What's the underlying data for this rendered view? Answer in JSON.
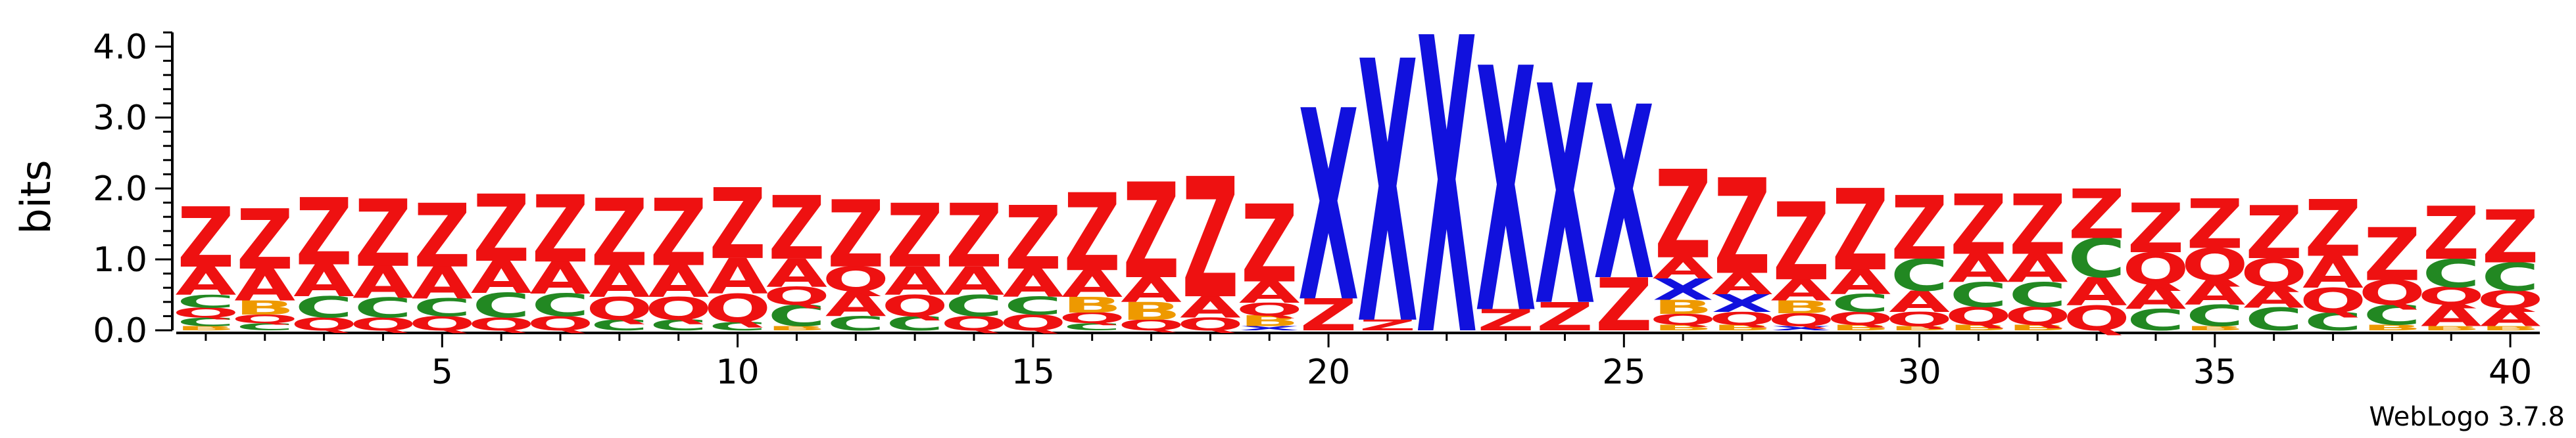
{
  "chart_data": {
    "type": "sequence-logo",
    "ylabel": "bits",
    "ylim": [
      0,
      4.2
    ],
    "yticks": [
      0.0,
      1.0,
      2.0,
      3.0,
      4.0
    ],
    "ytick_labels": [
      "0.0",
      "1.0",
      "2.0",
      "3.0",
      "4.0"
    ],
    "xlim": [
      0.5,
      40.5
    ],
    "xticks": [
      5,
      10,
      15,
      20,
      25,
      30,
      35,
      40
    ],
    "xtick_labels": [
      "5",
      "10",
      "15",
      "20",
      "25",
      "30",
      "35",
      "40"
    ],
    "colors": {
      "Z": "#ee1111",
      "A": "#ee1111",
      "Q": "#ee1111",
      "X": "#1111dd",
      "C": "#228822",
      "B": "#ee9900"
    },
    "positions": [
      {
        "pos": 1,
        "stack": [
          [
            "B",
            0.06
          ],
          [
            "C",
            0.12
          ],
          [
            "Q",
            0.14
          ],
          [
            "C",
            0.18
          ],
          [
            "A",
            0.4
          ],
          [
            "Z",
            0.85
          ]
        ]
      },
      {
        "pos": 2,
        "stack": [
          [
            "C",
            0.1
          ],
          [
            "Q",
            0.12
          ],
          [
            "B",
            0.2
          ],
          [
            "A",
            0.45
          ],
          [
            "Z",
            0.85
          ]
        ]
      },
      {
        "pos": 3,
        "stack": [
          [
            "Q",
            0.18
          ],
          [
            "C",
            0.3
          ],
          [
            "A",
            0.45
          ],
          [
            "Z",
            0.95
          ]
        ]
      },
      {
        "pos": 4,
        "stack": [
          [
            "Q",
            0.18
          ],
          [
            "C",
            0.28
          ],
          [
            "A",
            0.45
          ],
          [
            "Z",
            0.95
          ]
        ]
      },
      {
        "pos": 5,
        "stack": [
          [
            "Q",
            0.2
          ],
          [
            "C",
            0.25
          ],
          [
            "A",
            0.45
          ],
          [
            "Z",
            0.9
          ]
        ]
      },
      {
        "pos": 6,
        "stack": [
          [
            "Q",
            0.18
          ],
          [
            "C",
            0.35
          ],
          [
            "A",
            0.45
          ],
          [
            "Z",
            0.95
          ]
        ]
      },
      {
        "pos": 7,
        "stack": [
          [
            "Q",
            0.2
          ],
          [
            "C",
            0.32
          ],
          [
            "A",
            0.45
          ],
          [
            "Z",
            0.95
          ]
        ]
      },
      {
        "pos": 8,
        "stack": [
          [
            "C",
            0.15
          ],
          [
            "Q",
            0.32
          ],
          [
            "A",
            0.45
          ],
          [
            "Z",
            0.95
          ]
        ]
      },
      {
        "pos": 9,
        "stack": [
          [
            "C",
            0.15
          ],
          [
            "Q",
            0.32
          ],
          [
            "A",
            0.45
          ],
          [
            "Z",
            0.95
          ]
        ]
      },
      {
        "pos": 10,
        "stack": [
          [
            "C",
            0.12
          ],
          [
            "Q",
            0.4
          ],
          [
            "A",
            0.5
          ],
          [
            "Z",
            1.0
          ]
        ]
      },
      {
        "pos": 11,
        "stack": [
          [
            "B",
            0.06
          ],
          [
            "C",
            0.3
          ],
          [
            "Q",
            0.25
          ],
          [
            "A",
            0.4
          ],
          [
            "Z",
            0.9
          ]
        ]
      },
      {
        "pos": 12,
        "stack": [
          [
            "C",
            0.2
          ],
          [
            "A",
            0.35
          ],
          [
            "Q",
            0.35
          ],
          [
            "Z",
            0.95
          ]
        ]
      },
      {
        "pos": 13,
        "stack": [
          [
            "C",
            0.2
          ],
          [
            "Q",
            0.3
          ],
          [
            "A",
            0.4
          ],
          [
            "Z",
            0.9
          ]
        ]
      },
      {
        "pos": 14,
        "stack": [
          [
            "Q",
            0.2
          ],
          [
            "C",
            0.3
          ],
          [
            "A",
            0.4
          ],
          [
            "Z",
            0.9
          ]
        ]
      },
      {
        "pos": 15,
        "stack": [
          [
            "Q",
            0.22
          ],
          [
            "C",
            0.25
          ],
          [
            "A",
            0.4
          ],
          [
            "Z",
            0.9
          ]
        ]
      },
      {
        "pos": 16,
        "stack": [
          [
            "C",
            0.1
          ],
          [
            "Q",
            0.15
          ],
          [
            "B",
            0.22
          ],
          [
            "A",
            0.38
          ],
          [
            "Z",
            1.1
          ]
        ]
      },
      {
        "pos": 17,
        "stack": [
          [
            "Q",
            0.15
          ],
          [
            "B",
            0.25
          ],
          [
            "A",
            0.35
          ],
          [
            "Z",
            1.35
          ]
        ]
      },
      {
        "pos": 18,
        "stack": [
          [
            "Q",
            0.18
          ],
          [
            "A",
            0.3
          ],
          [
            "Z",
            1.7
          ]
        ]
      },
      {
        "pos": 19,
        "stack": [
          [
            "X",
            0.06
          ],
          [
            "B",
            0.15
          ],
          [
            "Q",
            0.18
          ],
          [
            "A",
            0.3
          ],
          [
            "Z",
            1.1
          ]
        ]
      },
      {
        "pos": 20,
        "stack": [
          [
            "Z",
            0.45
          ],
          [
            "X",
            2.7
          ]
        ]
      },
      {
        "pos": 21,
        "stack": [
          [
            "Z",
            0.15
          ],
          [
            "X",
            3.7
          ]
        ]
      },
      {
        "pos": 22,
        "stack": [
          [
            "X",
            4.18
          ]
        ]
      },
      {
        "pos": 23,
        "stack": [
          [
            "Z",
            0.3
          ],
          [
            "X",
            3.45
          ]
        ]
      },
      {
        "pos": 24,
        "stack": [
          [
            "Z",
            0.4
          ],
          [
            "X",
            3.1
          ]
        ]
      },
      {
        "pos": 25,
        "stack": [
          [
            "Z",
            0.75
          ],
          [
            "X",
            2.45
          ]
        ]
      },
      {
        "pos": 26,
        "stack": [
          [
            "B",
            0.08
          ],
          [
            "Q",
            0.15
          ],
          [
            "B",
            0.2
          ],
          [
            "X",
            0.3
          ],
          [
            "A",
            0.3
          ],
          [
            "Z",
            1.25
          ]
        ]
      },
      {
        "pos": 27,
        "stack": [
          [
            "B",
            0.08
          ],
          [
            "Q",
            0.18
          ],
          [
            "X",
            0.25
          ],
          [
            "A",
            0.3
          ],
          [
            "Z",
            1.35
          ]
        ]
      },
      {
        "pos": 28,
        "stack": [
          [
            "X",
            0.06
          ],
          [
            "Q",
            0.18
          ],
          [
            "B",
            0.18
          ],
          [
            "A",
            0.3
          ],
          [
            "Z",
            1.1
          ]
        ]
      },
      {
        "pos": 29,
        "stack": [
          [
            "B",
            0.08
          ],
          [
            "Q",
            0.18
          ],
          [
            "C",
            0.25
          ],
          [
            "A",
            0.35
          ],
          [
            "Z",
            1.15
          ]
        ]
      },
      {
        "pos": 30,
        "stack": [
          [
            "B",
            0.06
          ],
          [
            "Q",
            0.2
          ],
          [
            "A",
            0.3
          ],
          [
            "C",
            0.45
          ],
          [
            "Z",
            0.9
          ]
        ]
      },
      {
        "pos": 31,
        "stack": [
          [
            "B",
            0.08
          ],
          [
            "Q",
            0.25
          ],
          [
            "C",
            0.35
          ],
          [
            "A",
            0.4
          ],
          [
            "Z",
            0.85
          ]
        ]
      },
      {
        "pos": 32,
        "stack": [
          [
            "B",
            0.08
          ],
          [
            "Q",
            0.25
          ],
          [
            "C",
            0.35
          ],
          [
            "A",
            0.4
          ],
          [
            "Z",
            0.85
          ]
        ]
      },
      {
        "pos": 33,
        "stack": [
          [
            "Q",
            0.35
          ],
          [
            "A",
            0.4
          ],
          [
            "C",
            0.55
          ],
          [
            "Z",
            0.7
          ]
        ]
      },
      {
        "pos": 34,
        "stack": [
          [
            "C",
            0.3
          ],
          [
            "A",
            0.35
          ],
          [
            "Q",
            0.45
          ],
          [
            "Z",
            0.7
          ]
        ]
      },
      {
        "pos": 35,
        "stack": [
          [
            "B",
            0.06
          ],
          [
            "C",
            0.3
          ],
          [
            "A",
            0.35
          ],
          [
            "Q",
            0.45
          ],
          [
            "Z",
            0.7
          ]
        ]
      },
      {
        "pos": 36,
        "stack": [
          [
            "C",
            0.32
          ],
          [
            "A",
            0.3
          ],
          [
            "Q",
            0.4
          ],
          [
            "Z",
            0.75
          ]
        ]
      },
      {
        "pos": 37,
        "stack": [
          [
            "C",
            0.25
          ],
          [
            "Q",
            0.35
          ],
          [
            "A",
            0.45
          ],
          [
            "Z",
            0.8
          ]
        ]
      },
      {
        "pos": 38,
        "stack": [
          [
            "B",
            0.08
          ],
          [
            "C",
            0.28
          ],
          [
            "Q",
            0.35
          ],
          [
            "Z",
            0.75
          ]
        ]
      },
      {
        "pos": 39,
        "stack": [
          [
            "B",
            0.06
          ],
          [
            "A",
            0.3
          ],
          [
            "Q",
            0.25
          ],
          [
            "C",
            0.4
          ],
          [
            "Z",
            0.75
          ]
        ]
      },
      {
        "pos": 40,
        "stack": [
          [
            "B",
            0.06
          ],
          [
            "A",
            0.25
          ],
          [
            "Q",
            0.25
          ],
          [
            "C",
            0.4
          ],
          [
            "Z",
            0.75
          ]
        ]
      }
    ]
  },
  "footer": {
    "credit": "WebLogo 3.7.8"
  }
}
